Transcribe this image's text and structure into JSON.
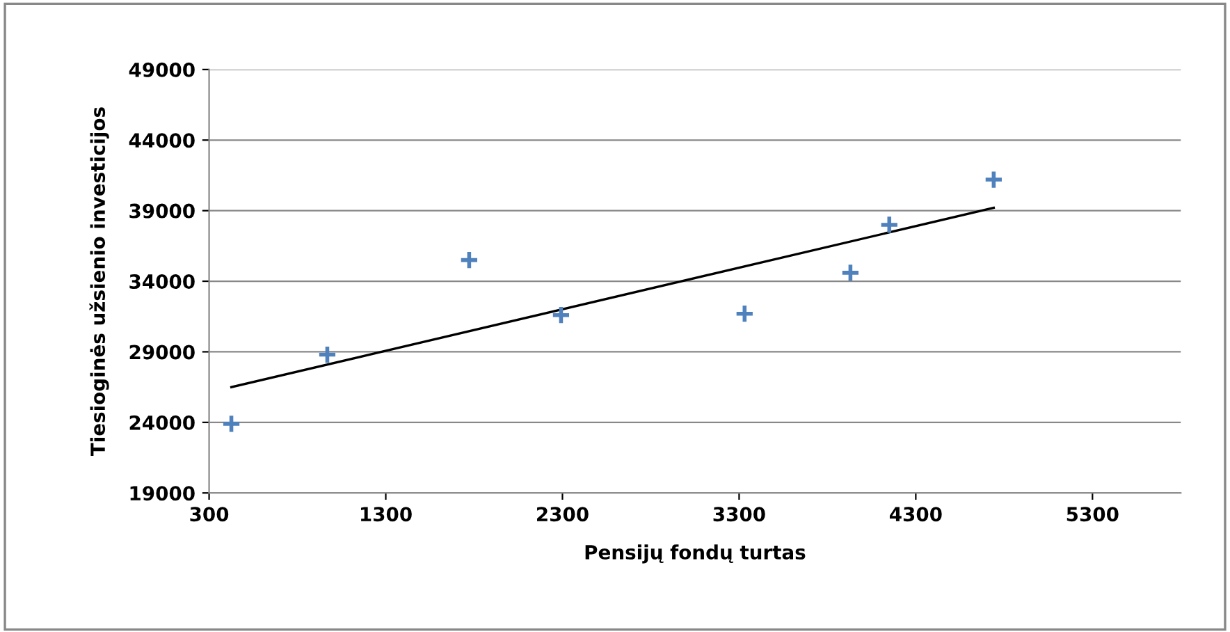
{
  "chart_data": {
    "type": "scatter",
    "xlabel": "Pensijų fondų turtas",
    "ylabel": "Tiesioginės užsienio investicijos",
    "xlim": [
      300,
      5800
    ],
    "xticks": [
      300,
      1300,
      2300,
      3300,
      4300,
      5300
    ],
    "ylim": [
      19000,
      49000
    ],
    "yticks": [
      19000,
      24000,
      29000,
      34000,
      39000,
      44000,
      49000
    ],
    "grid": "y",
    "marker": "cross",
    "series": [
      {
        "color": "#4f81bd",
        "x": [
          426,
          969,
          1772,
          2292,
          3331,
          3930,
          4150,
          4741
        ],
        "values": [
          23900,
          28800,
          35500,
          31600,
          31700,
          34600,
          38000,
          41200
        ]
      },
      {
        "type": "line",
        "color": "#000000",
        "x": [
          426,
          4741
        ],
        "values": [
          26500,
          39200
        ],
        "marker": "none"
      }
    ]
  }
}
